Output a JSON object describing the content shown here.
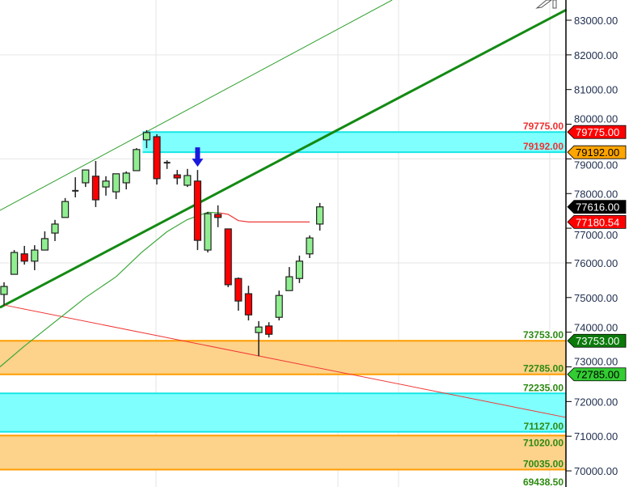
{
  "chart_data": {
    "type": "candlestick",
    "title": "",
    "xlabel": "",
    "ylabel": "",
    "ylim": [
      69400,
      83600
    ],
    "grid": true,
    "y_ticks": [
      "83000.00",
      "82000.00",
      "81000.00",
      "80000.00",
      "79000.00",
      "78000.00",
      "77000.00",
      "76000.00",
      "75000.00",
      "74000.00",
      "73000.00",
      "72000.00",
      "71000.00",
      "70000.00"
    ],
    "candles": [
      {
        "o": 75090,
        "h": 75440,
        "l": 74780,
        "c": 75320
      },
      {
        "o": 75670,
        "h": 76370,
        "l": 75670,
        "c": 76300
      },
      {
        "o": 76260,
        "h": 76490,
        "l": 75950,
        "c": 76050
      },
      {
        "o": 76050,
        "h": 76510,
        "l": 75790,
        "c": 76370
      },
      {
        "o": 76370,
        "h": 76910,
        "l": 76370,
        "c": 76700
      },
      {
        "o": 76860,
        "h": 77240,
        "l": 76630,
        "c": 77120
      },
      {
        "o": 77310,
        "h": 77870,
        "l": 77310,
        "c": 77770
      },
      {
        "o": 78080,
        "h": 78470,
        "l": 77890,
        "c": 78080
      },
      {
        "o": 78310,
        "h": 78680,
        "l": 78190,
        "c": 78680
      },
      {
        "o": 78500,
        "h": 78940,
        "l": 77610,
        "c": 77820
      },
      {
        "o": 78190,
        "h": 78500,
        "l": 77940,
        "c": 78360
      },
      {
        "o": 78050,
        "h": 78570,
        "l": 77840,
        "c": 78570
      },
      {
        "o": 78310,
        "h": 78640,
        "l": 78120,
        "c": 78590
      },
      {
        "o": 78660,
        "h": 79310,
        "l": 78660,
        "c": 79270
      },
      {
        "o": 79550,
        "h": 79830,
        "l": 79310,
        "c": 79760
      },
      {
        "o": 79640,
        "h": 79710,
        "l": 78260,
        "c": 78430
      },
      {
        "o": 78890,
        "h": 78960,
        "l": 78710,
        "c": 78890
      },
      {
        "o": 78540,
        "h": 78680,
        "l": 78260,
        "c": 78450
      },
      {
        "o": 78240,
        "h": 78710,
        "l": 78190,
        "c": 78520
      },
      {
        "o": 78360,
        "h": 78680,
        "l": 76370,
        "c": 76650
      },
      {
        "o": 76370,
        "h": 77470,
        "l": 76300,
        "c": 77420
      },
      {
        "o": 77400,
        "h": 77660,
        "l": 77030,
        "c": 77310
      },
      {
        "o": 76980,
        "h": 76980,
        "l": 75300,
        "c": 75370
      },
      {
        "o": 75550,
        "h": 75580,
        "l": 74620,
        "c": 74900
      },
      {
        "o": 75110,
        "h": 75340,
        "l": 74340,
        "c": 74500
      },
      {
        "o": 73990,
        "h": 74320,
        "l": 73310,
        "c": 74150
      },
      {
        "o": 74180,
        "h": 74290,
        "l": 73850,
        "c": 73940
      },
      {
        "o": 74430,
        "h": 75200,
        "l": 74340,
        "c": 75060
      },
      {
        "o": 75200,
        "h": 75880,
        "l": 75200,
        "c": 75600
      },
      {
        "o": 75550,
        "h": 76210,
        "l": 75420,
        "c": 76050
      },
      {
        "o": 76260,
        "h": 76790,
        "l": 76140,
        "c": 76720
      },
      {
        "o": 77120,
        "h": 77730,
        "l": 76930,
        "c": 77616
      }
    ],
    "signal_arrow": {
      "candle": 19,
      "direction": "down",
      "color": "#1a1adf"
    },
    "trendlines": [
      {
        "from": [
          -0.4,
          77515
        ],
        "to": [
          38.1,
          83583
        ],
        "color": "#2ea02e",
        "weight": "thin"
      },
      {
        "from": [
          -0.4,
          74714
        ],
        "to": [
          55.2,
          83303
        ],
        "color": "#138a13",
        "weight": "thick"
      },
      {
        "from": [
          0,
          74784
        ],
        "to": [
          55.2,
          71540
        ],
        "color": "#f03838",
        "weight": "thin"
      }
    ],
    "moving_averages": [
      {
        "color": "#3aa83a",
        "points": [
          [
            -0.4,
            73000
          ],
          [
            2,
            73600
          ],
          [
            5,
            74300
          ],
          [
            8,
            75000
          ],
          [
            11,
            75600
          ],
          [
            13.5,
            76300
          ],
          [
            16,
            76900
          ],
          [
            18,
            77250
          ],
          [
            20,
            77460
          ],
          [
            21.2,
            77440
          ]
        ]
      },
      {
        "color": "#f03838",
        "points": [
          [
            21.2,
            77440
          ],
          [
            22,
            77400
          ],
          [
            23,
            77220
          ],
          [
            24,
            77180
          ],
          [
            30,
            77180
          ]
        ]
      }
    ],
    "zones": [
      {
        "top": 79775,
        "bottom": 79192,
        "start": 14,
        "fill": "#80ffff",
        "border": "#16e6e6",
        "top_label": "79775.00",
        "bottom_label": "79192.00",
        "label_color": "#f03030"
      },
      {
        "top": 73753,
        "bottom": 72785,
        "start": -1,
        "fill": "#fdd28a",
        "border": "#ff9d00",
        "top_label": "73753.00",
        "bottom_label": "72785.00",
        "label_color": "#2d8a12"
      },
      {
        "top": 72235,
        "bottom": 71127,
        "start": -1,
        "fill": "#80ffff",
        "border": "#16e6e6",
        "top_label": "72235.00",
        "bottom_label": "71127.00",
        "label_color": "#2d8a12"
      },
      {
        "top": 71020,
        "bottom": 70035,
        "start": -1,
        "fill": "#fdd28a",
        "border": "#ff9d00",
        "top_label": "71020.00",
        "bottom_label": "70035.00",
        "label_color": "#2d8a12"
      }
    ],
    "extra_labels": [
      {
        "price": 69438.5,
        "text": "69438.50",
        "color": "#2d8a12"
      }
    ],
    "price_tags": [
      {
        "price": 79775,
        "text": "79775.00",
        "bg": "#ff0000",
        "fg": "#ffffff"
      },
      {
        "price": 79192,
        "text": "79192.00",
        "bg": "#ffa500",
        "fg": "#000000"
      },
      {
        "price": 77616,
        "text": "77616.00",
        "bg": "#000000",
        "fg": "#ffffff"
      },
      {
        "price": 77180.54,
        "text": "77180.54",
        "bg": "#ff0000",
        "fg": "#ffffff"
      },
      {
        "price": 73753,
        "text": "73753.00",
        "bg": "#0b7a0b",
        "fg": "#ffffff"
      },
      {
        "price": 72785,
        "text": "72785.00",
        "bg": "#33cc33",
        "fg": "#000000"
      }
    ],
    "colors": {
      "up": "#90ee90",
      "down": "#ff0000",
      "outline": "#222222",
      "grid": "#e6e6e6"
    }
  }
}
